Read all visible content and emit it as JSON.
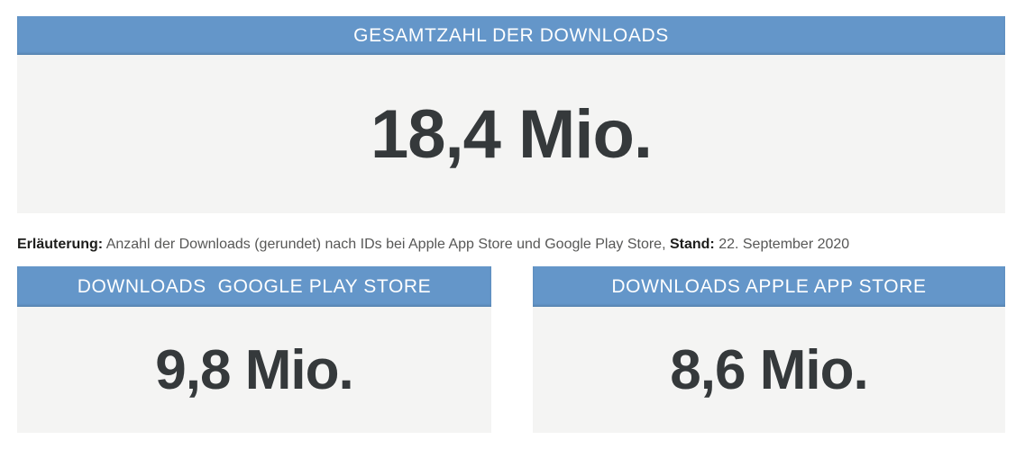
{
  "chart_data": {
    "type": "table",
    "title": "GESAMTZAHL DER DOWNLOADS",
    "categories": [
      "Gesamtzahl der Downloads",
      "Downloads Google Play Store",
      "Downloads Apple App Store"
    ],
    "values": [
      18.4,
      9.8,
      8.6
    ],
    "unit": "Mio.",
    "as_of": "22. September 2020",
    "note": "Anzahl der Downloads (gerundet) nach IDs bei Apple App Store und Google Play Store"
  },
  "colors": {
    "header_bg": "#6496c9",
    "header_text": "#ffffff",
    "panel_bg": "#f4f4f3",
    "number_text": "#35393b",
    "note_text": "#575756",
    "note_bold_text": "#1d1d1b",
    "page_bg": "#ffffff"
  },
  "panels": {
    "total": {
      "header": "GESAMTZAHL DER DOWNLOADS",
      "value": "18,4 Mio."
    },
    "google": {
      "header": "DOWNLOADS  GOOGLE PLAY STORE",
      "value": "9,8 Mio."
    },
    "apple": {
      "header": "DOWNLOADS APPLE APP STORE",
      "value": "8,6 Mio."
    }
  },
  "note": {
    "label": "Erläuterung:",
    "text": " Anzahl der Downloads (gerundet) nach IDs bei Apple App Store und Google Play Store, ",
    "stand_label": "Stand:",
    "stand_value": " 22. September 2020"
  }
}
